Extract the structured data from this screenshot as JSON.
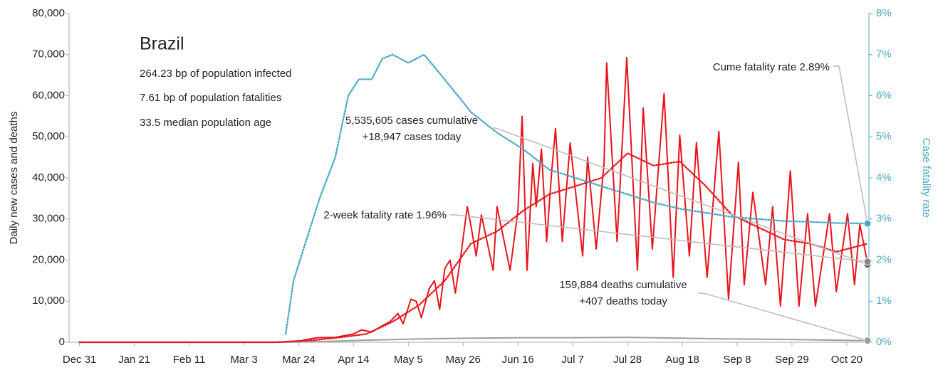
{
  "chart_data": {
    "type": "line",
    "panel": {
      "title": "Brazil",
      "lines": [
        "264.23 bp of population infected",
        "7.61 bp of population fatalities",
        "33.5 median population age"
      ]
    },
    "ylabel": "Daily new cases and deaths",
    "y2label": "Case fatality rate",
    "xlim": [
      -4,
      302.5
    ],
    "ylim": [
      0,
      80000
    ],
    "y2lim": [
      0,
      8
    ],
    "xticks": [
      {
        "value": 0,
        "label": "Dec 31"
      },
      {
        "value": 21,
        "label": "Jan 21"
      },
      {
        "value": 42,
        "label": "Feb 11"
      },
      {
        "value": 63,
        "label": "Mar 3"
      },
      {
        "value": 84,
        "label": "Mar 24"
      },
      {
        "value": 105,
        "label": "Apr 14"
      },
      {
        "value": 126,
        "label": "May 5"
      },
      {
        "value": 147,
        "label": "May 26"
      },
      {
        "value": 168,
        "label": "Jun 16"
      },
      {
        "value": 189,
        "label": "Jul 7"
      },
      {
        "value": 210,
        "label": "Jul 28"
      },
      {
        "value": 231,
        "label": "Aug 18"
      },
      {
        "value": 252,
        "label": "Sep 8"
      },
      {
        "value": 273,
        "label": "Sep 29"
      },
      {
        "value": 294,
        "label": "Oct 20"
      }
    ],
    "yticks": [
      0,
      {
        "value": 10000,
        "label": "10,000"
      },
      {
        "value": 20000,
        "label": "20,000"
      },
      {
        "value": 30000,
        "label": "30,000"
      },
      {
        "value": 40000,
        "label": "40,000"
      },
      {
        "value": 50000,
        "label": "50,000"
      },
      {
        "value": 60000,
        "label": "60,000"
      },
      {
        "value": 70000,
        "label": "70,000"
      },
      {
        "value": 80000,
        "label": "80,000"
      }
    ],
    "y2ticks": [
      {
        "value": 0,
        "label": "0%"
      },
      {
        "value": 1,
        "label": "1%"
      },
      {
        "value": 2,
        "label": "2%"
      },
      {
        "value": 3,
        "label": "3%"
      },
      {
        "value": 4,
        "label": "4%"
      },
      {
        "value": 5,
        "label": "5%"
      },
      {
        "value": 6,
        "label": "6%"
      },
      {
        "value": 7,
        "label": "7%"
      },
      {
        "value": 8,
        "label": "8%"
      }
    ],
    "series": [
      {
        "color": "#9e9e9e",
        "style": "solid",
        "x": [
          0,
          75,
          90,
          110,
          130,
          150,
          170,
          190,
          210,
          230,
          250,
          270,
          290,
          302
        ],
        "values": [
          0,
          0,
          100,
          500,
          800,
          1000,
          1100,
          1100,
          1200,
          1000,
          800,
          700,
          500,
          400
        ]
      },
      {
        "color": "#e8141c",
        "style": "dotted",
        "x": [
          0,
          75,
          90,
          100,
          110,
          120,
          130,
          140,
          150,
          160,
          170,
          180,
          190,
          200,
          210,
          220,
          230,
          240,
          250,
          260,
          270,
          280,
          290,
          302
        ],
        "values": [
          0,
          0,
          500,
          1200,
          2000,
          5000,
          9000,
          15000,
          24000,
          27000,
          32000,
          36000,
          38000,
          40000,
          46000,
          43000,
          44000,
          38000,
          31000,
          28000,
          25000,
          24000,
          22000,
          24000
        ]
      },
      {
        "color": "#e8141c",
        "style": "solid",
        "x": [
          0,
          76,
          84,
          91,
          98,
          105,
          108,
          112,
          116,
          119,
          122,
          124,
          127,
          129,
          131,
          134,
          136,
          138,
          140,
          142,
          144,
          146,
          148.6,
          150,
          152,
          154,
          158.5,
          160,
          165,
          168,
          169.6,
          171.5,
          173.7,
          175,
          177,
          179,
          181,
          182.4,
          185,
          188,
          192.8,
          194.7,
          198,
          201,
          202,
          206,
          209.7,
          213.8,
          216,
          219.5,
          224,
          227.5,
          230,
          233.7,
          236.4,
          240.5,
          245,
          248.7,
          252.5,
          254.7,
          258,
          262.9,
          265.6,
          268.6,
          272.4,
          275.7,
          279,
          282,
          287.4,
          290,
          294.3,
          297,
          299,
          302
        ],
        "values": [
          0,
          0,
          300,
          1100,
          1200,
          2000,
          3000,
          2500,
          4000,
          5000,
          7000,
          4500,
          10500,
          10000,
          6000,
          13000,
          15000,
          8000,
          18000,
          20000,
          12000,
          20500,
          33000,
          28400,
          21000,
          31000,
          17500,
          33000,
          17500,
          32000,
          55000,
          17500,
          43500,
          33000,
          47000,
          24500,
          42000,
          52000,
          24500,
          48500,
          21000,
          45000,
          22700,
          43500,
          68000,
          24500,
          69300,
          17500,
          57000,
          22700,
          60500,
          15800,
          50400,
          21000,
          48600,
          15800,
          51300,
          10500,
          43800,
          14000,
          36500,
          14000,
          33000,
          8800,
          41700,
          8800,
          31300,
          8800,
          31300,
          12300,
          31300,
          14000,
          28700,
          19200
        ]
      },
      {
        "color": "#4aa8c4",
        "style": "dotted",
        "axis": "y2",
        "x": [
          79,
          82,
          87,
          92,
          98,
          103,
          107,
          112,
          116,
          120,
          126,
          132,
          136,
          145,
          150,
          160,
          170,
          180,
          190,
          200,
          210,
          220,
          230,
          240,
          250,
          260,
          270,
          280,
          290,
          302
        ],
        "values": [
          0.2,
          1.5,
          2.5,
          3.5,
          4.5,
          6,
          6.4,
          6.4,
          6.9,
          7,
          6.8,
          7,
          6.7,
          6,
          5.6,
          5.1,
          4.7,
          4.2,
          4,
          3.8,
          3.6,
          3.4,
          3.25,
          3.15,
          3.05,
          3,
          2.95,
          2.93,
          2.9,
          2.89
        ]
      }
    ],
    "annotations": [
      {
        "lines": [
          "Cume fatality rate 2.89%"
        ],
        "value": 2.89,
        "axis": "y2",
        "color": "#4aa8c4"
      },
      {
        "lines": [
          "5,535,605 cases cumulative",
          "+18,947 cases today"
        ],
        "value": 18947,
        "axis": "y",
        "color": "#555555"
      },
      {
        "lines": [
          "2-week fatality rate 1.96%"
        ],
        "value": 1.96,
        "axis": "y2",
        "color": "#888888"
      },
      {
        "lines": [
          "159,884 deaths cumulative",
          "+407 deaths today"
        ],
        "value": 407,
        "axis": "y",
        "color": "#9e9e9e"
      }
    ]
  }
}
